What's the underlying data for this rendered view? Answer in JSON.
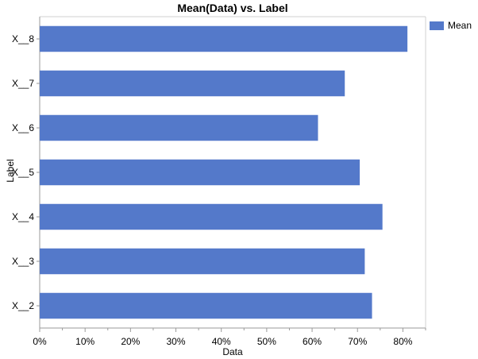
{
  "chart_data": {
    "type": "bar",
    "orientation": "horizontal",
    "title": "Mean(Data) vs. Label",
    "xlabel": "Data",
    "ylabel": "Label",
    "categories": [
      "X__8",
      "X__7",
      "X__6",
      "X__5",
      "X__4",
      "X__3",
      "X__2"
    ],
    "series": [
      {
        "name": "Mean",
        "values": [
          81,
          67.2,
          61.3,
          70.5,
          75.5,
          71.6,
          73.2
        ]
      }
    ],
    "xlim": [
      0,
      85
    ],
    "xticks": [
      {
        "value": 0,
        "label": "0%"
      },
      {
        "value": 10,
        "label": "10%"
      },
      {
        "value": 20,
        "label": "20%"
      },
      {
        "value": 30,
        "label": "30%"
      },
      {
        "value": 40,
        "label": "40%"
      },
      {
        "value": 50,
        "label": "50%"
      },
      {
        "value": 60,
        "label": "60%"
      },
      {
        "value": 70,
        "label": "70%"
      },
      {
        "value": 80,
        "label": "80%"
      }
    ],
    "grid": false,
    "legend_position": "top-right",
    "bar_color": "#5479CA"
  }
}
